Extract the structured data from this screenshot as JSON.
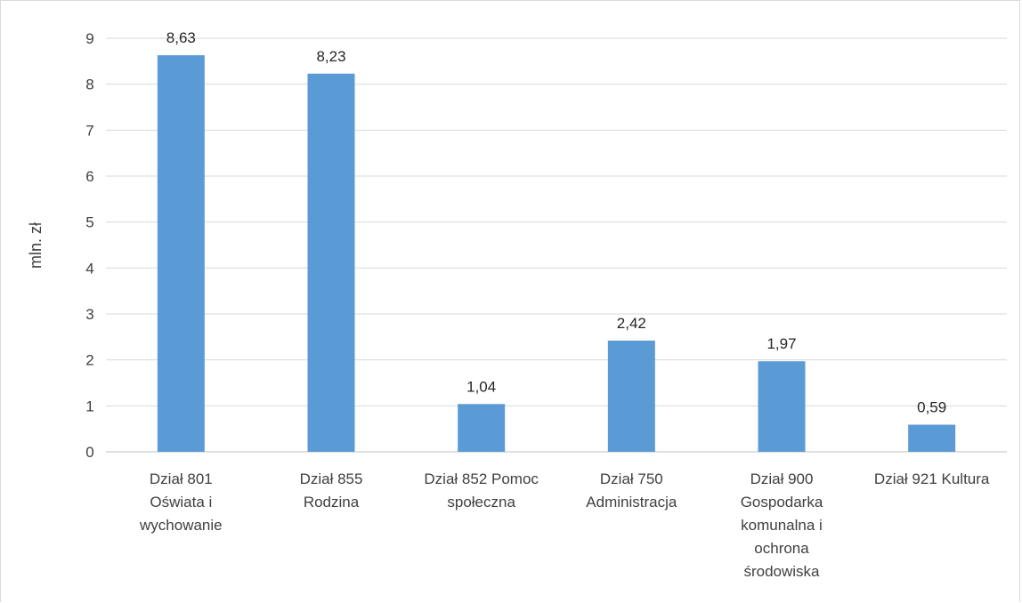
{
  "chart_data": {
    "type": "bar",
    "title": "",
    "xlabel": "",
    "ylabel": "mln. zł",
    "ylim": [
      0,
      9
    ],
    "yticks": [
      0,
      1,
      2,
      3,
      4,
      5,
      6,
      7,
      8,
      9
    ],
    "grid": true,
    "legend": "none",
    "bar_color": "#5b9bd5",
    "categories": [
      [
        "Dział 801",
        "Oświata i",
        "wychowanie"
      ],
      [
        "Dział 855",
        "Rodzina"
      ],
      [
        "Dział 852 Pomoc",
        "społeczna"
      ],
      [
        "Dział 750",
        "Administracja"
      ],
      [
        "Dział 900",
        "Gospodarka",
        "komunalna i",
        "ochrona",
        "środowiska"
      ],
      [
        "Dział 921 Kultura"
      ]
    ],
    "values": [
      8.63,
      8.23,
      1.04,
      2.42,
      1.97,
      0.59
    ],
    "data_labels": [
      "8,63",
      "8,23",
      "1,04",
      "2,42",
      "1,97",
      "0,59"
    ]
  }
}
